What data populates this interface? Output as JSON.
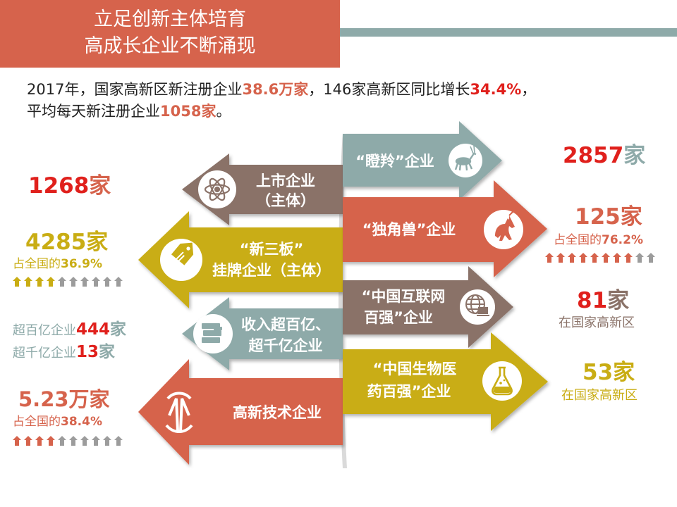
{
  "title": {
    "line1": "立足创新主体培育",
    "line2": "高成长企业不断涌现"
  },
  "intro": {
    "p1": "2017年，国家高新区新注册企业",
    "v1": "38.6万家",
    "p2": "，146家高新区同比增长",
    "v2": "34.4%",
    "p3": "，",
    "p4": "平均每天新注册企业",
    "v3": "1058家",
    "p5": "。"
  },
  "left_arrows": [
    {
      "line1": "上市企业",
      "line2": "（主体）",
      "color": "#8a7268",
      "icon": "atom-icon"
    },
    {
      "line1": "“新三板”",
      "line2": "挂牌企业（主体）",
      "color": "#c9ad14",
      "icon": "price-tag-icon"
    },
    {
      "line1": "收入超百亿、",
      "line2": "超千亿企业",
      "color": "#8eaaa9",
      "icon": "money-stack-icon"
    },
    {
      "line1": "高新技术企业",
      "line2": "",
      "color": "#d6634c",
      "icon": "hightech-logo-icon"
    }
  ],
  "right_arrows": [
    {
      "line1": "“瞪羚”企业",
      "line2": "",
      "color": "#8eaaa9",
      "icon": "gazelle-icon"
    },
    {
      "line1": "“独角兽”企业",
      "line2": "",
      "color": "#d6634c",
      "icon": "unicorn-icon"
    },
    {
      "line1": "“中国互联网",
      "line2": "百强”企业",
      "color": "#8a7268",
      "icon": "globe-computer-icon"
    },
    {
      "line1": "“中国生物医",
      "line2": "药百强”企业",
      "color": "#c9ad14",
      "icon": "flask-icon"
    }
  ],
  "left_stats": {
    "listed": {
      "num": "1268",
      "unit": "家"
    },
    "neeq": {
      "num": "4285家",
      "share": "占全国的",
      "pct": "36.9%",
      "progress": 0.369
    },
    "big": {
      "label1": "超百亿企业",
      "num1": "444",
      "unit1": "家",
      "label2": "超千亿企业",
      "num2": "13",
      "unit2": "家"
    },
    "hightech": {
      "num": "5.23万家",
      "share": "占全国的",
      "pct": "38.4%",
      "progress": 0.384
    }
  },
  "right_stats": {
    "gazelle": {
      "num": "2857",
      "unit": "家"
    },
    "unicorn": {
      "num": "125家",
      "share": "占全国的",
      "pct": "76.2%",
      "progress": 0.762
    },
    "internet": {
      "num": "81",
      "unit": "家",
      "note": "在国家高新区"
    },
    "bio": {
      "num": "53家",
      "note": "在国家高新区"
    }
  },
  "colors": {
    "coral": "#d6634c",
    "red": "#e0201c",
    "gold": "#c9ad14",
    "teal": "#8eaaa9",
    "brown": "#8a7268",
    "grey": "#9c9c9c"
  }
}
